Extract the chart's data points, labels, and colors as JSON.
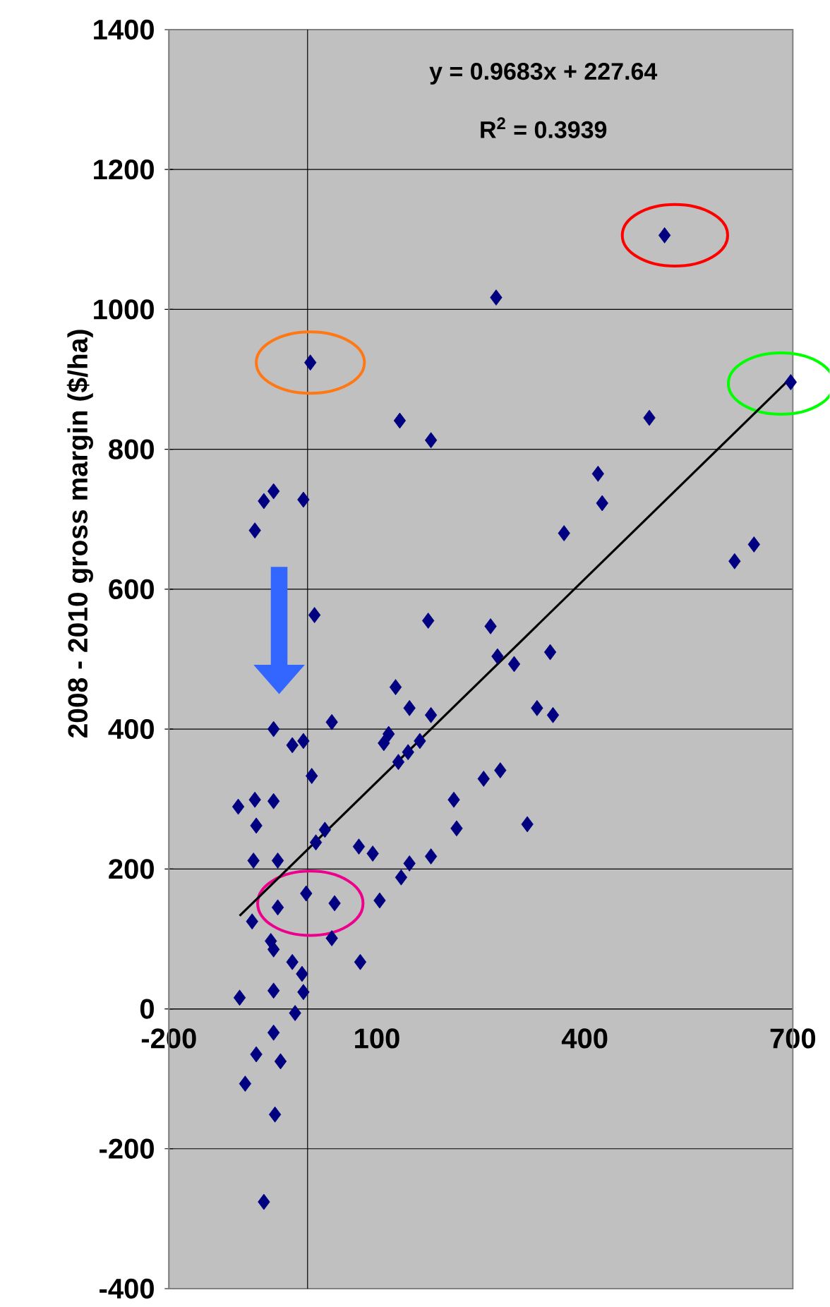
{
  "chart_data": {
    "type": "scatter",
    "ylabel": "2008 - 2010 gross margin ($/ha)",
    "annotations": [
      "y = 0.9683x + 227.64",
      "R$^{2}$ = 0.3939"
    ],
    "xlim": [
      -200,
      700
    ],
    "xticks": [
      -200,
      100,
      400,
      700
    ],
    "ylim": [
      -400,
      1400
    ],
    "yticks": [
      -400,
      -200,
      0,
      200,
      400,
      600,
      800,
      1000,
      1200,
      1400
    ],
    "grid": "y",
    "series": [
      {
        "marker": "diamond",
        "color": "#000080",
        "x": [
          515,
          272,
          4,
          697,
          133,
          178,
          493,
          -49,
          -63,
          -6,
          -76,
          419,
          425,
          370,
          616,
          644,
          10,
          174,
          264,
          274,
          298,
          350,
          127,
          147,
          178,
          331,
          354,
          -49,
          35,
          -22,
          -6,
          117,
          110,
          162,
          131,
          145,
          6,
          -100,
          -76,
          -49,
          -74,
          254,
          278,
          211,
          215,
          317,
          74,
          94,
          178,
          147,
          25,
          12,
          -78,
          -43,
          -2,
          39,
          -43,
          104,
          135,
          -80,
          -53,
          -49,
          35,
          76,
          -22,
          -8,
          -6,
          -98,
          -49,
          -18,
          -49,
          -74,
          -39,
          -90,
          -47,
          -63
        ],
        "values": [
          1106,
          1017,
          924,
          896,
          841,
          813,
          845,
          740,
          726,
          728,
          684,
          765,
          723,
          680,
          640,
          664,
          563,
          555,
          547,
          504,
          493,
          510,
          460,
          430,
          420,
          430,
          420,
          400,
          410,
          377,
          383,
          393,
          380,
          383,
          353,
          367,
          333,
          289,
          299,
          297,
          262,
          329,
          341,
          299,
          258,
          264,
          232,
          222,
          218,
          208,
          256,
          238,
          212,
          212,
          165,
          151,
          145,
          155,
          188,
          125,
          97,
          85,
          101,
          67,
          67,
          50,
          24,
          16,
          26,
          -6,
          -34,
          -65,
          -75,
          -107,
          -151,
          -276
        ]
      },
      {
        "type": "line",
        "color": "#000000",
        "x": [
          -98,
          697
        ],
        "values": [
          133,
          902
        ]
      }
    ]
  }
}
